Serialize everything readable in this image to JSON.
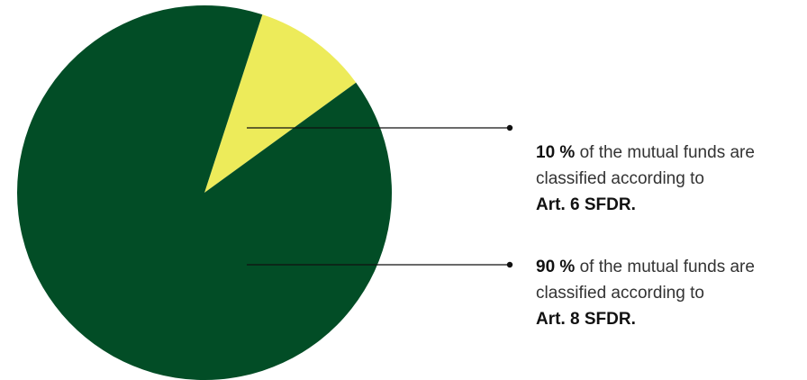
{
  "chart_data": {
    "type": "pie",
    "slices": [
      {
        "value": 10,
        "color": "#EDEB5A"
      },
      {
        "value": 90,
        "color": "#024D26"
      }
    ],
    "annotations": [
      {
        "value_label": "10 %",
        "text": " of the mutual funds are classified according to ",
        "category": "Art. 6 SFDR."
      },
      {
        "value_label": "90 %",
        "text": " of the mutual funds are classified according to ",
        "category": "Art. 8 SFDR."
      }
    ]
  }
}
